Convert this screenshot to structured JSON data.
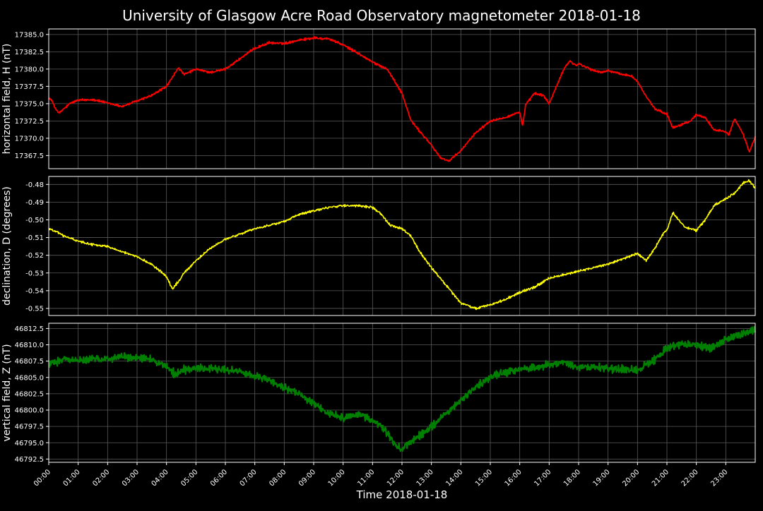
{
  "chart_data": {
    "type": "line",
    "title": "University of Glasgow Acre Road Observatory magnetometer 2018-01-18",
    "xlabel": "Time 2018-01-18",
    "x_tick_labels": [
      "00:00",
      "01:00",
      "02:00",
      "03:00",
      "04:00",
      "05:00",
      "06:00",
      "07:00",
      "08:00",
      "09:00",
      "10:00",
      "11:00",
      "12:00",
      "13:00",
      "14:00",
      "15:00",
      "16:00",
      "17:00",
      "18:00",
      "19:00",
      "20:00",
      "21:00",
      "22:00",
      "23:00"
    ],
    "xlim_hours": [
      0,
      24
    ],
    "background": "#000000",
    "grid": true,
    "grid_color": "#5a5a5a",
    "panels": [
      {
        "ylabel": "horizontal field, H (nT)",
        "color": "#ff0000",
        "ylim": [
          17365.6,
          17385.8
        ],
        "yticks": [
          17367.5,
          17370.0,
          17372.5,
          17375.0,
          17377.5,
          17380.0,
          17382.5,
          17385.0
        ],
        "ytick_labels": [
          "17367.5",
          "17370.0",
          "17372.5",
          "17375.0",
          "17377.5",
          "17380.0",
          "17382.5",
          "17385.0"
        ],
        "x": [
          0,
          0.1,
          0.2,
          0.35,
          0.5,
          0.75,
          1,
          1.5,
          2,
          2.5,
          3,
          3.5,
          4,
          4.2,
          4.4,
          4.6,
          5,
          5.5,
          6,
          6.5,
          7,
          7.5,
          8,
          8.5,
          9,
          9.5,
          10,
          10.5,
          11,
          11.5,
          12,
          12.3,
          12.6,
          13,
          13.3,
          13.6,
          14,
          14.5,
          15,
          15.5,
          16,
          16.1,
          16.2,
          16.5,
          16.8,
          17,
          17.3,
          17.5,
          17.7,
          17.9,
          18,
          18.3,
          18.5,
          18.8,
          19,
          19.5,
          19.8,
          20,
          20.3,
          20.6,
          21,
          21.2,
          21.5,
          21.8,
          22,
          22.3,
          22.6,
          23,
          23.1,
          23.3,
          23.6,
          23.8,
          24
        ],
        "y": [
          17375.8,
          17375.5,
          17374.5,
          17373.6,
          17374.2,
          17375.1,
          17375.5,
          17375.6,
          17375.1,
          17374.6,
          17375.4,
          17376.2,
          17377.5,
          17378.8,
          17380.2,
          17379.2,
          17380.0,
          17379.5,
          17380.0,
          17381.5,
          17383.0,
          17383.8,
          17383.7,
          17384.2,
          17384.5,
          17384.4,
          17383.5,
          17382.3,
          17381.0,
          17380.0,
          17376.5,
          17372.6,
          17371.0,
          17369.0,
          17367.2,
          17366.7,
          17368.2,
          17370.8,
          17372.5,
          17373.0,
          17373.8,
          17371.8,
          17374.8,
          17376.5,
          17376.2,
          17375.0,
          17378.0,
          17380.0,
          17381.2,
          17380.5,
          17380.8,
          17380.2,
          17379.8,
          17379.5,
          17379.8,
          17379.2,
          17379.0,
          17378.2,
          17376.0,
          17374.2,
          17373.5,
          17371.5,
          17372.0,
          17372.5,
          17373.4,
          17373.0,
          17371.2,
          17371.0,
          17370.5,
          17372.8,
          17370.5,
          17368.0,
          17370.2
        ]
      },
      {
        "ylabel": "declination, D (degrees)",
        "color": "#ffff00",
        "ylim": [
          -0.554,
          -0.4755
        ],
        "yticks": [
          -0.48,
          -0.49,
          -0.5,
          -0.51,
          -0.52,
          -0.53,
          -0.54,
          -0.55
        ],
        "ytick_labels": [
          "-0.48",
          "-0.49",
          "-0.50",
          "-0.51",
          "-0.52",
          "-0.53",
          "-0.54",
          "-0.55"
        ],
        "x": [
          0,
          0.3,
          0.5,
          1,
          1.5,
          2,
          2.5,
          3,
          3.5,
          4,
          4.2,
          4.4,
          4.6,
          5,
          5.5,
          6,
          6.5,
          7,
          7.5,
          8,
          8.5,
          9,
          9.5,
          10,
          10.5,
          11,
          11.3,
          11.6,
          12,
          12.3,
          12.6,
          13,
          13.5,
          14,
          14.5,
          15,
          15.5,
          16,
          16.5,
          17,
          17.5,
          18,
          18.5,
          19,
          19.5,
          20,
          20.3,
          20.6,
          20.9,
          21,
          21.2,
          21.4,
          21.6,
          21.8,
          22,
          22.3,
          22.6,
          23,
          23.3,
          23.6,
          23.8,
          24
        ],
        "y": [
          -0.505,
          -0.507,
          -0.509,
          -0.512,
          -0.514,
          -0.515,
          -0.518,
          -0.521,
          -0.525,
          -0.532,
          -0.539,
          -0.535,
          -0.53,
          -0.523,
          -0.516,
          -0.511,
          -0.508,
          -0.505,
          -0.503,
          -0.501,
          -0.497,
          -0.495,
          -0.493,
          -0.492,
          -0.492,
          -0.493,
          -0.497,
          -0.503,
          -0.505,
          -0.509,
          -0.518,
          -0.527,
          -0.537,
          -0.547,
          -0.55,
          -0.548,
          -0.545,
          -0.541,
          -0.538,
          -0.533,
          -0.531,
          -0.529,
          -0.527,
          -0.525,
          -0.522,
          -0.519,
          -0.523,
          -0.516,
          -0.507,
          -0.506,
          -0.496,
          -0.5,
          -0.504,
          -0.505,
          -0.506,
          -0.5,
          -0.492,
          -0.488,
          -0.485,
          -0.479,
          -0.478,
          -0.482
        ]
      },
      {
        "ylabel": "vertical field, Z (nT)",
        "color": "#008000",
        "ylim": [
          46792.0,
          46813.3
        ],
        "yticks": [
          46792.5,
          46795.0,
          46797.5,
          46800.0,
          46802.5,
          46805.0,
          46807.5,
          46810.0,
          46812.5
        ],
        "ytick_labels": [
          "46792.5",
          "46795.0",
          "46797.5",
          "46800.0",
          "46802.5",
          "46805.0",
          "46807.5",
          "46810.0",
          "46812.5"
        ],
        "x": [
          0,
          0.5,
          1,
          1.5,
          2,
          2.5,
          3,
          3.5,
          4,
          4.3,
          4.6,
          5,
          5.5,
          6,
          6.5,
          7,
          7.5,
          8,
          8.5,
          9,
          9.5,
          10,
          10.5,
          11,
          11.5,
          11.8,
          12,
          12.5,
          13,
          13.5,
          14,
          14.5,
          15,
          15.5,
          16,
          16.5,
          17,
          17.5,
          18,
          18.5,
          19,
          19.5,
          20,
          20.5,
          21,
          21.5,
          22,
          22.5,
          23,
          23.5,
          24
        ],
        "y": [
          46807.0,
          46807.8,
          46807.6,
          46807.8,
          46807.9,
          46808.2,
          46808.0,
          46807.7,
          46806.7,
          46805.5,
          46806.2,
          46806.4,
          46806.3,
          46806.2,
          46805.8,
          46805.2,
          46804.5,
          46803.5,
          46802.5,
          46801.0,
          46799.5,
          46798.8,
          46799.3,
          46798.5,
          46796.5,
          46794.5,
          46794.0,
          46795.8,
          46797.5,
          46799.5,
          46801.5,
          46803.5,
          46805.0,
          46805.8,
          46806.2,
          46806.5,
          46807.0,
          46807.2,
          46806.5,
          46806.6,
          46806.4,
          46806.3,
          46806.0,
          46807.5,
          46809.5,
          46810.2,
          46810.0,
          46809.5,
          46810.8,
          46811.5,
          46812.2
        ]
      }
    ]
  }
}
